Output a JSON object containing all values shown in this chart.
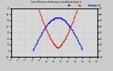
{
  "title": "Solar PV/Inverter Performance Sun Altitude Angle & Sun Incidence Angle on PV Panels",
  "bg_color": "#cccccc",
  "plot_bg_color": "#d8d8d8",
  "grid_color": "#bbbbbb",
  "x_start": 0,
  "x_end": 24,
  "y_left_min": -10,
  "y_left_max": 70,
  "y_right_min": -10,
  "y_right_max": 70,
  "sun_altitude_color": "#0000cc",
  "sun_incidence_color": "#cc0000",
  "dot_size": 1.5,
  "sunrise": 6.0,
  "sunset": 20.0,
  "peak_altitude": 55,
  "panel_tilt": 30,
  "x_ticks": [
    0,
    2,
    4,
    6,
    8,
    10,
    12,
    14,
    16,
    18,
    20,
    22,
    24
  ],
  "y_ticks": [
    -10,
    0,
    10,
    20,
    30,
    40,
    50,
    60,
    70
  ],
  "tick_fontsize": 2.2,
  "title_fontsize": 2.0,
  "legend_items": [
    {
      "label": "HOr",
      "color": "#0000cc"
    },
    {
      "label": "Sun",
      "color": "#cc0000"
    },
    {
      "label": "SunAngle",
      "color": "#0000cc"
    },
    {
      "label": "PV",
      "color": "#cc0000"
    }
  ]
}
